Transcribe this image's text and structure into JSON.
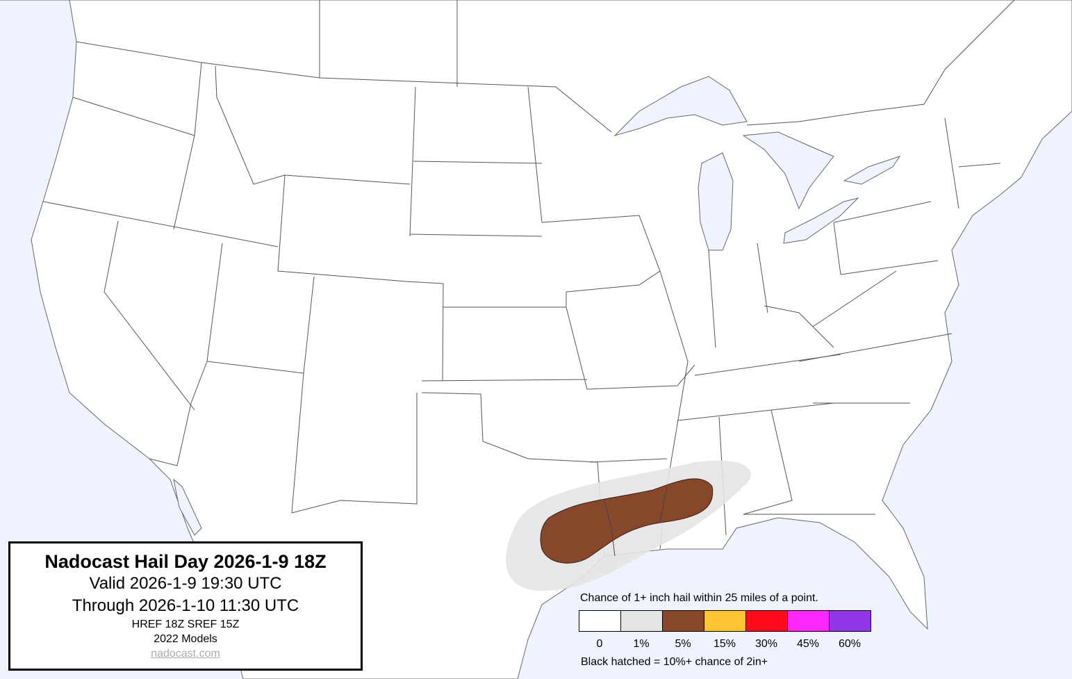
{
  "title_box": {
    "title": "Nadocast Hail Day 2026-1-9 18Z",
    "valid": "Valid 2026-1-9 19:30 UTC",
    "through": "Through 2026-1-10 11:30 UTC",
    "models_run": "HREF 18Z SREF 15Z",
    "models_version": "2022 Models",
    "link": "nadocast.com"
  },
  "legend": {
    "title": "Chance of 1+ inch hail within 25 miles of a point.",
    "bins": [
      {
        "label": "0",
        "color": "#ffffff"
      },
      {
        "label": "1%",
        "color": "#e4e4e4"
      },
      {
        "label": "5%",
        "color": "#87472a"
      },
      {
        "label": "15%",
        "color": "#ffc42f"
      },
      {
        "label": "30%",
        "color": "#fe0c1c"
      },
      {
        "label": "45%",
        "color": "#fe28fe"
      },
      {
        "label": "60%",
        "color": "#9038e8"
      }
    ],
    "note": "Black hatched = 10%+ chance of 2in+"
  },
  "map": {
    "water_color": "#eef3fd",
    "land_color": "#ffffff",
    "border_color": "#555555",
    "forecast_areas": [
      {
        "level": "1%",
        "color": "#e4e4e4"
      },
      {
        "level": "5%",
        "color": "#87472a"
      }
    ]
  }
}
